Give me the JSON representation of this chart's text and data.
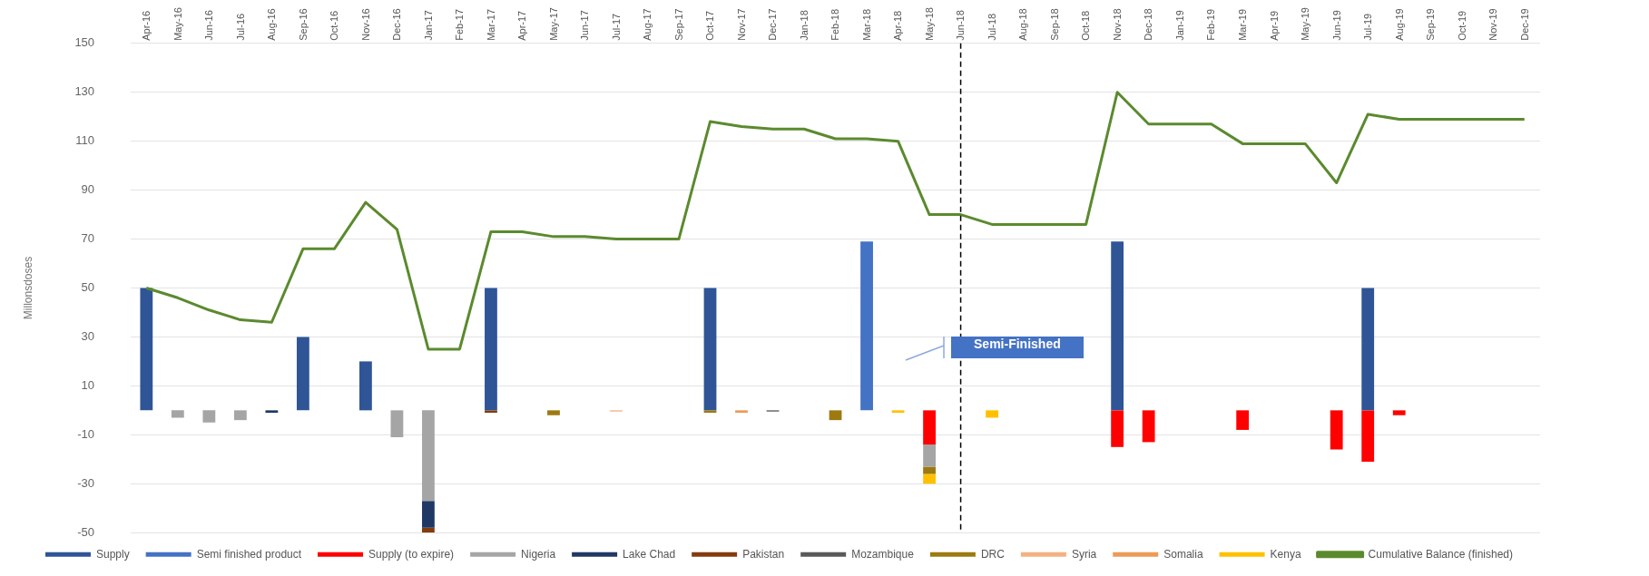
{
  "chart_data": {
    "type": "bar",
    "stacked": true,
    "ylabel": "Millonsdoses",
    "categories": [
      "Apr-16",
      "May-16",
      "Jun-16",
      "Jul-16",
      "Aug-16",
      "Sep-16",
      "Oct-16",
      "Nov-16",
      "Dec-16",
      "Jan-17",
      "Feb-17",
      "Mar-17",
      "Apr-17",
      "May-17",
      "Jun-17",
      "Jul-17",
      "Aug-17",
      "Sep-17",
      "Oct-17",
      "Nov-17",
      "Dec-17",
      "Jan-18",
      "Feb-18",
      "Mar-18",
      "Apr-18",
      "May-18",
      "Jun-18",
      "Jul-18",
      "Aug-18",
      "Sep-18",
      "Oct-18",
      "Nov-18",
      "Dec-18",
      "Jan-19",
      "Feb-19",
      "Mar-19",
      "Apr-19",
      "May-19",
      "Jun-19",
      "Jul-19",
      "Aug-19",
      "Sep-19",
      "Oct-19",
      "Nov-19",
      "Dec-19"
    ],
    "ylim": [
      -50,
      150
    ],
    "yticks": [
      -50,
      -30,
      -10,
      10,
      30,
      50,
      70,
      90,
      110,
      130,
      150
    ],
    "grid": "y",
    "legend": "bottom",
    "series": [
      {
        "name": "Supply",
        "color": "#2f5597",
        "values": [
          50,
          null,
          null,
          null,
          null,
          30,
          null,
          20,
          null,
          null,
          null,
          50,
          null,
          null,
          null,
          null,
          null,
          null,
          50,
          null,
          null,
          null,
          null,
          null,
          null,
          null,
          null,
          null,
          null,
          null,
          null,
          69,
          null,
          null,
          null,
          null,
          null,
          null,
          null,
          50,
          null,
          null,
          null,
          null,
          null
        ]
      },
      {
        "name": "Semi finished product",
        "color": "#4472c4",
        "values": [
          null,
          null,
          null,
          null,
          null,
          null,
          null,
          null,
          null,
          null,
          null,
          null,
          null,
          null,
          null,
          null,
          null,
          null,
          null,
          null,
          null,
          null,
          null,
          69,
          null,
          null,
          null,
          null,
          null,
          null,
          null,
          null,
          null,
          null,
          null,
          null,
          null,
          null,
          null,
          null,
          null,
          null,
          null,
          null,
          null
        ]
      },
      {
        "name": "Supply (to expire)",
        "color": "#ff0000",
        "values": [
          null,
          null,
          null,
          null,
          null,
          null,
          null,
          null,
          null,
          null,
          null,
          null,
          null,
          null,
          null,
          null,
          null,
          null,
          null,
          null,
          null,
          null,
          null,
          null,
          null,
          -14,
          null,
          null,
          null,
          null,
          null,
          -15,
          -13,
          null,
          null,
          -8,
          null,
          null,
          -16,
          -21,
          -2,
          null,
          null,
          null,
          null
        ]
      },
      {
        "name": "Nigeria",
        "color": "#a5a5a5",
        "values": [
          null,
          -3,
          -5,
          -4,
          null,
          null,
          null,
          null,
          -11,
          -37,
          null,
          null,
          null,
          null,
          null,
          null,
          null,
          null,
          null,
          null,
          null,
          null,
          null,
          null,
          null,
          -9,
          null,
          null,
          null,
          null,
          null,
          null,
          null,
          null,
          null,
          null,
          null,
          null,
          null,
          null,
          null,
          null,
          null,
          null,
          null
        ]
      },
      {
        "name": "Lake Chad",
        "color": "#203864",
        "values": [
          null,
          null,
          null,
          null,
          -1,
          null,
          null,
          null,
          null,
          -11,
          null,
          null,
          null,
          null,
          null,
          null,
          null,
          null,
          null,
          null,
          null,
          null,
          null,
          null,
          null,
          null,
          null,
          null,
          null,
          null,
          null,
          null,
          null,
          null,
          null,
          null,
          null,
          null,
          null,
          null,
          null,
          null,
          null,
          null,
          null
        ]
      },
      {
        "name": "Pakistan",
        "color": "#843c0c",
        "values": [
          null,
          null,
          null,
          null,
          null,
          null,
          null,
          null,
          null,
          -2,
          null,
          -1,
          null,
          null,
          null,
          null,
          null,
          null,
          null,
          null,
          null,
          null,
          null,
          null,
          null,
          null,
          null,
          null,
          null,
          null,
          null,
          null,
          null,
          null,
          null,
          null,
          null,
          null,
          null,
          null,
          null,
          null,
          null,
          null,
          null
        ]
      },
      {
        "name": "Mozambique",
        "color": "#595959",
        "values": [
          null,
          null,
          null,
          null,
          null,
          null,
          null,
          null,
          null,
          null,
          null,
          null,
          null,
          null,
          null,
          null,
          null,
          null,
          null,
          null,
          -0.5,
          null,
          null,
          null,
          null,
          null,
          null,
          null,
          null,
          null,
          null,
          null,
          null,
          null,
          null,
          null,
          null,
          null,
          null,
          null,
          null,
          null,
          null,
          null,
          null
        ]
      },
      {
        "name": "DRC",
        "color": "#9c7a10",
        "values": [
          null,
          null,
          null,
          null,
          null,
          null,
          null,
          null,
          null,
          null,
          null,
          null,
          null,
          -2,
          null,
          null,
          null,
          null,
          -1,
          null,
          null,
          null,
          -4,
          null,
          null,
          -3,
          null,
          null,
          null,
          null,
          null,
          null,
          null,
          null,
          null,
          null,
          null,
          null,
          null,
          null,
          null,
          null,
          null,
          null,
          null
        ]
      },
      {
        "name": "Syria",
        "color": "#f4b183",
        "values": [
          null,
          null,
          null,
          null,
          null,
          null,
          null,
          null,
          null,
          null,
          null,
          null,
          null,
          null,
          null,
          -0.5,
          null,
          null,
          null,
          null,
          null,
          null,
          null,
          null,
          null,
          null,
          null,
          null,
          null,
          null,
          null,
          null,
          null,
          null,
          null,
          null,
          null,
          null,
          null,
          null,
          null,
          null,
          null,
          null,
          null
        ]
      },
      {
        "name": "Somalia",
        "color": "#ed9a56",
        "values": [
          null,
          null,
          null,
          null,
          null,
          null,
          null,
          null,
          null,
          null,
          null,
          null,
          null,
          null,
          null,
          null,
          null,
          null,
          null,
          -1,
          null,
          null,
          null,
          null,
          null,
          null,
          null,
          null,
          null,
          null,
          null,
          null,
          null,
          null,
          null,
          null,
          null,
          null,
          null,
          null,
          null,
          null,
          null,
          null,
          null
        ]
      },
      {
        "name": "Kenya",
        "color": "#ffc000",
        "values": [
          null,
          null,
          null,
          null,
          null,
          null,
          null,
          null,
          null,
          null,
          null,
          null,
          null,
          null,
          null,
          null,
          null,
          null,
          null,
          null,
          null,
          null,
          null,
          null,
          -1,
          -4,
          null,
          -3,
          null,
          null,
          null,
          null,
          null,
          null,
          null,
          null,
          null,
          null,
          null,
          null,
          null,
          null,
          null,
          null,
          null
        ]
      },
      {
        "name": "Cumulative Balance (finished)",
        "type": "line",
        "color": "#5b8a2e",
        "values": [
          50,
          46,
          41,
          37,
          36,
          66,
          66,
          85,
          74,
          25,
          25,
          73,
          73,
          71,
          71,
          70,
          70,
          70,
          118,
          116,
          115,
          115,
          111,
          111,
          110,
          80,
          80,
          76,
          76,
          76,
          76,
          130,
          117,
          117,
          117,
          109,
          109,
          109,
          93,
          121,
          119,
          119,
          119,
          119,
          119
        ]
      }
    ],
    "ref_lines": [
      {
        "axis": "x",
        "value": "Jun-18",
        "color": "#000000",
        "line_style": "dashed"
      }
    ],
    "annotations": [
      "Semi-Finished"
    ]
  }
}
